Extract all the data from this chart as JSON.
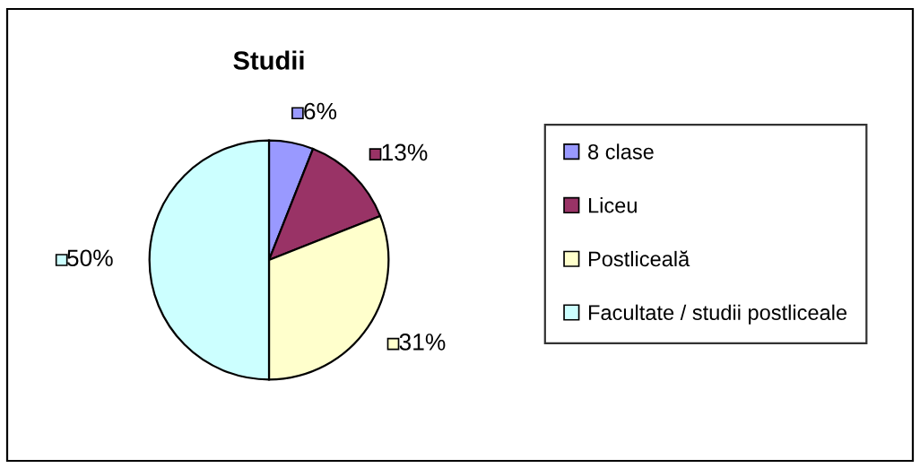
{
  "chart_data": {
    "type": "pie",
    "title": "Studii",
    "categories": [
      "8 clase",
      "Liceu",
      "Postliceală",
      "Facultate / studii postliceale"
    ],
    "values": [
      6,
      13,
      31,
      50
    ],
    "value_labels": [
      "6%",
      "13%",
      "31%",
      "50%"
    ],
    "colors": [
      "#9999ff",
      "#993366",
      "#ffffcc",
      "#ccffff"
    ],
    "legend": "right"
  }
}
